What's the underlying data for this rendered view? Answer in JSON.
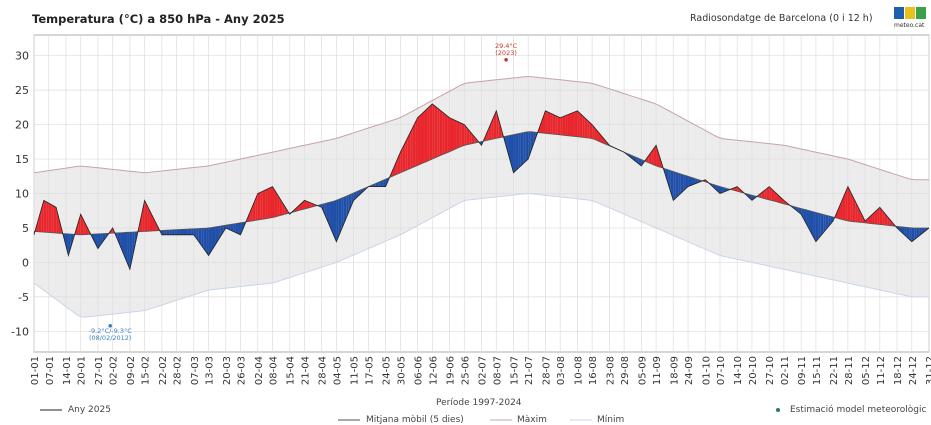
{
  "header": {
    "title": "Temperatura (°C) a 850 hPa - Any 2025",
    "source": "Radiosondatge de Barcelona (0 i 12 h)",
    "logo_text": "meteo.cat"
  },
  "colors": {
    "above": "#e8262b",
    "below": "#1f4fa8",
    "max": "#c9a3a3",
    "min": "#c9d6e6",
    "band": "#ececec",
    "mean": "#555555",
    "year": "#222222"
  },
  "chart_data": {
    "type": "area",
    "title": "Temperatura (°C) a 850 hPa - Any 2025",
    "ylim": [
      -13,
      33
    ],
    "yticks": [
      -10,
      -5,
      0,
      5,
      10,
      15,
      20,
      25,
      30
    ],
    "xticks": [
      "01-01",
      "07-01",
      "14-01",
      "20-01",
      "27-01",
      "02-02",
      "09-02",
      "15-02",
      "22-02",
      "28-02",
      "07-03",
      "13-03",
      "20-03",
      "26-03",
      "02-04",
      "08-04",
      "15-04",
      "21-04",
      "28-04",
      "04-05",
      "11-05",
      "17-05",
      "24-05",
      "30-05",
      "06-06",
      "12-06",
      "19-06",
      "25-06",
      "02-07",
      "08-07",
      "15-07",
      "21-07",
      "28-07",
      "03-08",
      "10-08",
      "16-08",
      "23-08",
      "29-08",
      "05-09",
      "11-09",
      "18-09",
      "24-09",
      "01-10",
      "07-10",
      "14-10",
      "20-10",
      "27-10",
      "02-11",
      "09-11",
      "15-11",
      "22-11",
      "28-11",
      "05-12",
      "11-12",
      "18-12",
      "24-12",
      "31-12"
    ],
    "reference_period": "Període 1997-2024",
    "grid": true,
    "series": [
      {
        "name": "Any 2025",
        "x": [
          "01-01",
          "05-01",
          "10-01",
          "15-01",
          "20-01",
          "27-01",
          "02-02",
          "09-02",
          "15-02",
          "22-02",
          "28-02",
          "07-03",
          "13-03",
          "20-03",
          "26-03",
          "02-04",
          "08-04",
          "15-04",
          "21-04",
          "28-04",
          "04-05",
          "11-05",
          "17-05",
          "24-05",
          "30-05",
          "06-06",
          "12-06",
          "19-06",
          "25-06",
          "02-07",
          "08-07",
          "15-07",
          "21-07",
          "28-07",
          "03-08",
          "10-08",
          "16-08",
          "23-08",
          "29-08",
          "05-09",
          "11-09",
          "18-09",
          "24-09",
          "01-10",
          "07-10",
          "14-10",
          "20-10",
          "27-10",
          "02-11",
          "09-11",
          "15-11",
          "22-11",
          "28-11",
          "05-12",
          "11-12",
          "18-12",
          "24-12",
          "31-12"
        ],
        "y": [
          4,
          9,
          8,
          1,
          7,
          2,
          5,
          -1,
          9,
          4,
          4,
          4,
          1,
          5,
          4,
          10,
          11,
          7,
          9,
          8,
          3,
          9,
          11,
          11,
          16,
          21,
          23,
          21,
          20,
          17,
          22,
          13,
          15,
          22,
          21,
          22,
          20,
          17,
          16,
          14,
          17,
          9,
          11,
          12,
          10,
          11,
          9,
          11,
          9,
          7,
          3,
          6,
          11,
          6,
          8,
          5,
          3,
          5
        ]
      },
      {
        "name": "Mitjana mòbil (5 dies)",
        "x": [
          "01-01",
          "20-01",
          "15-02",
          "13-03",
          "08-04",
          "04-05",
          "30-05",
          "25-06",
          "21-07",
          "16-08",
          "11-09",
          "07-10",
          "02-11",
          "28-11",
          "24-12",
          "31-12"
        ],
        "y": [
          4.5,
          4,
          4.5,
          5,
          6.5,
          9,
          13,
          17,
          19,
          18,
          14,
          11,
          8.5,
          6,
          5,
          5
        ]
      },
      {
        "name": "Màxim",
        "x": [
          "01-01",
          "20-01",
          "15-02",
          "13-03",
          "08-04",
          "04-05",
          "30-05",
          "25-06",
          "21-07",
          "16-08",
          "11-09",
          "07-10",
          "02-11",
          "28-11",
          "24-12",
          "31-12"
        ],
        "y": [
          13,
          14,
          13,
          14,
          16,
          18,
          21,
          26,
          27,
          26,
          23,
          18,
          17,
          15,
          12,
          12
        ]
      },
      {
        "name": "Mínim",
        "x": [
          "01-01",
          "20-01",
          "15-02",
          "13-03",
          "08-04",
          "04-05",
          "30-05",
          "25-06",
          "21-07",
          "16-08",
          "11-09",
          "07-10",
          "02-11",
          "28-11",
          "24-12",
          "31-12"
        ],
        "y": [
          -3,
          -8,
          -7,
          -4,
          -3,
          0,
          4,
          9,
          10,
          9,
          5,
          1,
          -1,
          -3,
          -5,
          -5
        ]
      }
    ],
    "annotations": [
      {
        "label": "29.4°C",
        "sub": "(2023)",
        "x": "12-07",
        "y": 29.4
      },
      {
        "label": "-9.2°C/-9.3°C",
        "sub": "(08/02/2012)",
        "x": "01-02",
        "y": -9.2
      }
    ],
    "legend": [
      {
        "label": "Any 2025"
      },
      {
        "label": "Mitjana mòbil (5 dies)"
      },
      {
        "label": "Màxim"
      },
      {
        "label": "Mínim"
      },
      {
        "label": "Estimació model meteorològic"
      }
    ]
  }
}
